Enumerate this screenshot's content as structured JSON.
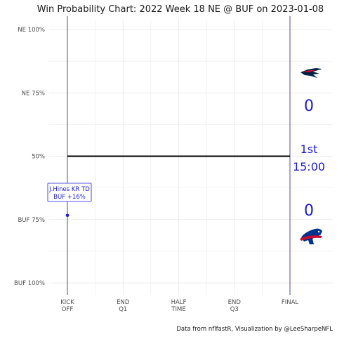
{
  "chart_data": {
    "type": "line",
    "title": "Win Probability Chart: 2022 Week 18 NE @ BUF on 2023-01-08",
    "y_ticks": [
      {
        "value": 0,
        "label": "NE 100%"
      },
      {
        "value": 0.25,
        "label": "NE 75%"
      },
      {
        "value": 0.5,
        "label": "50%"
      },
      {
        "value": 0.75,
        "label": "BUF 75%"
      },
      {
        "value": 1,
        "label": "BUF 100%"
      }
    ],
    "ylim": [
      0,
      1
    ],
    "x_ticks": [
      {
        "value": 3600,
        "line1": "KICK",
        "line2": "OFF"
      },
      {
        "value": 2700,
        "line1": "END",
        "line2": "Q1"
      },
      {
        "value": 1800,
        "line1": "HALF",
        "line2": "TIME"
      },
      {
        "value": 900,
        "line1": "END",
        "line2": "Q3"
      },
      {
        "value": 0,
        "line1": "FINAL",
        "line2": ""
      }
    ],
    "xlim": [
      3600,
      0
    ],
    "series": [
      {
        "points": [
          [
            3600,
            0.5
          ],
          [
            0,
            0.5
          ]
        ],
        "color": "#000000"
      }
    ],
    "vlines": [
      3600,
      0
    ],
    "annotation": {
      "x": 3600,
      "y": 0.75,
      "line1": "J.Hines KR TD",
      "line2": "BUF +16%",
      "color": "#1b1bd6"
    },
    "home_score": "0",
    "away_score": "0",
    "quarter": "1st",
    "clock": "15:00",
    "home_team": "BUF",
    "away_team": "NE",
    "colors": {
      "accent": "#1b1bd6",
      "ne_navy": "#002244",
      "ne_red": "#c60c30",
      "buf_blue": "#00338d",
      "buf_red": "#c60c30",
      "grid": "#e6e6e6"
    }
  },
  "caption": "Data from nflfastR, Visualization by @LeeSharpeNFL",
  "icons": {
    "away_logo": "patriots-logo-icon",
    "home_logo": "bills-logo-icon"
  }
}
